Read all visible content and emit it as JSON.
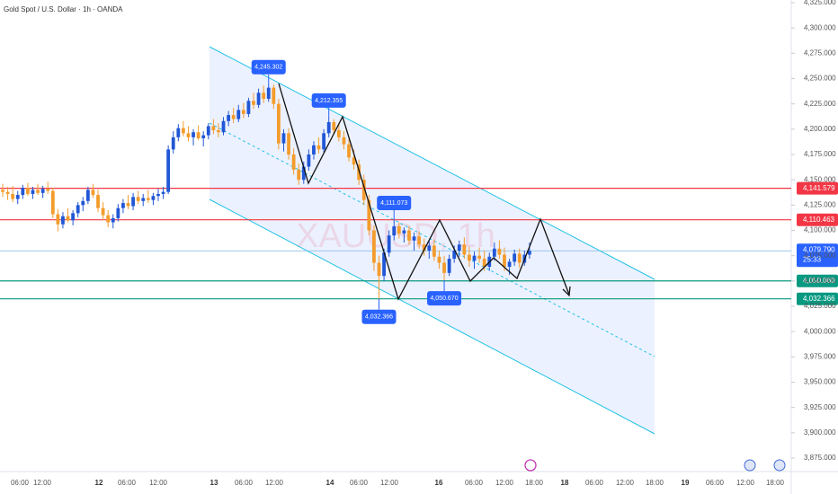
{
  "chart_data": {
    "type": "candlestick",
    "title": "Gold Spot / U.S. Dollar · 1h · OANDA",
    "watermark": "XAUUSD, 1h",
    "up_color": "#2157d6",
    "down_color": "#f39c2c",
    "ylim": [
      3875,
      4325
    ],
    "yticks": [
      {
        "value": 3875,
        "label": "3,875.000"
      },
      {
        "value": 3900,
        "label": "3,900.000"
      },
      {
        "value": 3925,
        "label": "3,925.000"
      },
      {
        "value": 3950,
        "label": "3,950.000"
      },
      {
        "value": 3975,
        "label": "3,975.000"
      },
      {
        "value": 4000,
        "label": "4,000.000"
      },
      {
        "value": 4025,
        "label": "4,025.000"
      },
      {
        "value": 4050,
        "label": "4,050.000"
      },
      {
        "value": 4075,
        "label": "4,075.000"
      },
      {
        "value": 4100,
        "label": "4,100.000"
      },
      {
        "value": 4125,
        "label": "4,125.000"
      },
      {
        "value": 4150,
        "label": "4,150.000"
      },
      {
        "value": 4175,
        "label": "4,175.000"
      },
      {
        "value": 4200,
        "label": "4,200.000"
      },
      {
        "value": 4225,
        "label": "4,225.000"
      },
      {
        "value": 4250,
        "label": "4,250.000"
      },
      {
        "value": 4275,
        "label": "4,275.000"
      },
      {
        "value": 4300,
        "label": "4,300.000"
      },
      {
        "value": 4325,
        "label": "4,325.000"
      }
    ],
    "time_labels": [
      "06:00",
      "12:00",
      "12",
      "06:00",
      "12:00",
      "13",
      "06:00",
      "12:00",
      "14",
      "06:00",
      "12:00",
      "16",
      "06:00",
      "12:00",
      "18:00",
      "18",
      "06:00",
      "12:00",
      "18:00",
      "19",
      "06:00",
      "12:00",
      "18:00"
    ],
    "open": [
      4140,
      4138,
      4136,
      4131,
      4135,
      4142,
      4136,
      4140,
      4137,
      4141,
      4139,
      4116,
      4106,
      4114,
      4110,
      4117,
      4125,
      4129,
      4140,
      4135,
      4122,
      4115,
      4108,
      4112,
      4122,
      4127,
      4124,
      4133,
      4129,
      4132,
      4130,
      4134,
      4136,
      4138,
      4180,
      4192,
      4201,
      4196,
      4192,
      4197,
      4191,
      4194,
      4203,
      4199,
      4197,
      4208,
      4214,
      4210,
      4219,
      4215,
      4228,
      4224,
      4236,
      4230,
      4241,
      4225,
      4186,
      4196,
      4175,
      4160,
      4150,
      4163,
      4175,
      4184,
      4180,
      4196,
      4207,
      4199,
      4192,
      4185,
      4172,
      4165,
      4150,
      4130,
      4100,
      4068,
      4055,
      4078,
      4095,
      4104,
      4097,
      4100,
      4090,
      4094,
      4086,
      4080,
      4085,
      4074,
      4068,
      4058,
      4072,
      4080,
      4086,
      4076,
      4070,
      4075,
      4072,
      4064,
      4074,
      4082,
      4076,
      4064,
      4069,
      4077,
      4068,
      4076
    ],
    "high": [
      4146,
      4143,
      4144,
      4139,
      4145,
      4147,
      4143,
      4146,
      4144,
      4148,
      4142,
      4121,
      4118,
      4122,
      4120,
      4128,
      4133,
      4143,
      4146,
      4140,
      4128,
      4120,
      4116,
      4126,
      4131,
      4135,
      4137,
      4139,
      4136,
      4140,
      4137,
      4141,
      4143,
      4184,
      4198,
      4205,
      4208,
      4203,
      4200,
      4204,
      4198,
      4206,
      4210,
      4206,
      4212,
      4218,
      4221,
      4224,
      4226,
      4231,
      4236,
      4240,
      4243,
      4245.302,
      4244,
      4230,
      4200,
      4201,
      4181,
      4166,
      4168,
      4180,
      4188,
      4192,
      4200,
      4212.355,
      4210,
      4206,
      4198,
      4190,
      4180,
      4170,
      4155,
      4135,
      4105,
      4075,
      4082,
      4100,
      4111.073,
      4108,
      4103,
      4104,
      4098,
      4099,
      4092,
      4090,
      4091,
      4080,
      4075,
      4076,
      4085,
      4090,
      4093,
      4084,
      4079,
      4083,
      4080,
      4078,
      4088,
      4090,
      4083,
      4072,
      4081,
      4082,
      4080,
      4088
    ],
    "low": [
      4133,
      4130,
      4128,
      4126,
      4131,
      4134,
      4131,
      4135,
      4132,
      4136,
      4112,
      4099,
      4102,
      4108,
      4105,
      4113,
      4119,
      4126,
      4132,
      4118,
      4110,
      4103,
      4102,
      4109,
      4117,
      4121,
      4120,
      4126,
      4124,
      4127,
      4125,
      4129,
      4131,
      4136,
      4176,
      4188,
      4193,
      4188,
      4184,
      4189,
      4183,
      4190,
      4195,
      4192,
      4194,
      4203,
      4206,
      4207,
      4211,
      4212,
      4220,
      4221,
      4226,
      4227,
      4220,
      4180,
      4178,
      4170,
      4155,
      4145,
      4146,
      4159,
      4170,
      4176,
      4177,
      4192,
      4195,
      4188,
      4180,
      4168,
      4160,
      4145,
      4125,
      4095,
      4060,
      4032.366,
      4050,
      4074,
      4090,
      4092,
      4088,
      4086,
      4080,
      4082,
      4075,
      4072,
      4070,
      4062,
      4050.67,
      4055,
      4068,
      4074,
      4072,
      4064,
      4062,
      4068,
      4060,
      4060,
      4070,
      4072,
      4060,
      4056,
      4065,
      4063,
      4065,
      4072
    ],
    "close": [
      4138,
      4136,
      4131,
      4135,
      4142,
      4136,
      4140,
      4137,
      4141,
      4139,
      4116,
      4106,
      4114,
      4110,
      4117,
      4125,
      4129,
      4140,
      4135,
      4122,
      4115,
      4108,
      4112,
      4122,
      4127,
      4124,
      4133,
      4129,
      4132,
      4130,
      4134,
      4136,
      4138,
      4180,
      4192,
      4201,
      4196,
      4192,
      4197,
      4191,
      4194,
      4203,
      4199,
      4197,
      4208,
      4214,
      4210,
      4219,
      4215,
      4228,
      4224,
      4236,
      4230,
      4241,
      4225,
      4186,
      4196,
      4175,
      4160,
      4150,
      4163,
      4175,
      4184,
      4180,
      4196,
      4207,
      4199,
      4192,
      4185,
      4172,
      4165,
      4150,
      4130,
      4100,
      4068,
      4055,
      4078,
      4095,
      4104,
      4097,
      4100,
      4090,
      4094,
      4086,
      4080,
      4085,
      4074,
      4068,
      4058,
      4072,
      4080,
      4086,
      4076,
      4070,
      4075,
      4072,
      4064,
      4074,
      4082,
      4076,
      4064,
      4069,
      4077,
      4068,
      4076,
      4079.79
    ],
    "annotations": [
      {
        "value": 4245.302,
        "label": "4,245.302"
      },
      {
        "value": 4212.355,
        "label": "4,212.355"
      },
      {
        "value": 4111.073,
        "label": "4,111.073"
      },
      {
        "value": 4032.366,
        "label": "4,032.366"
      },
      {
        "value": 4050.67,
        "label": "4,050.670"
      }
    ],
    "levels": [
      {
        "value": 4141.579,
        "label": "4,141.579",
        "color": "#f23645"
      },
      {
        "value": 4110.463,
        "label": "4,110.463",
        "color": "#f23645"
      },
      {
        "value": 4050.06,
        "label": "4,050.060",
        "color": "#089981"
      },
      {
        "value": 4032.366,
        "label": "4,032.366",
        "color": "#089981"
      }
    ],
    "last_price": {
      "value": 4079.79,
      "label": "4,079.790",
      "countdown": "25:33",
      "color": "#2962ff"
    }
  }
}
